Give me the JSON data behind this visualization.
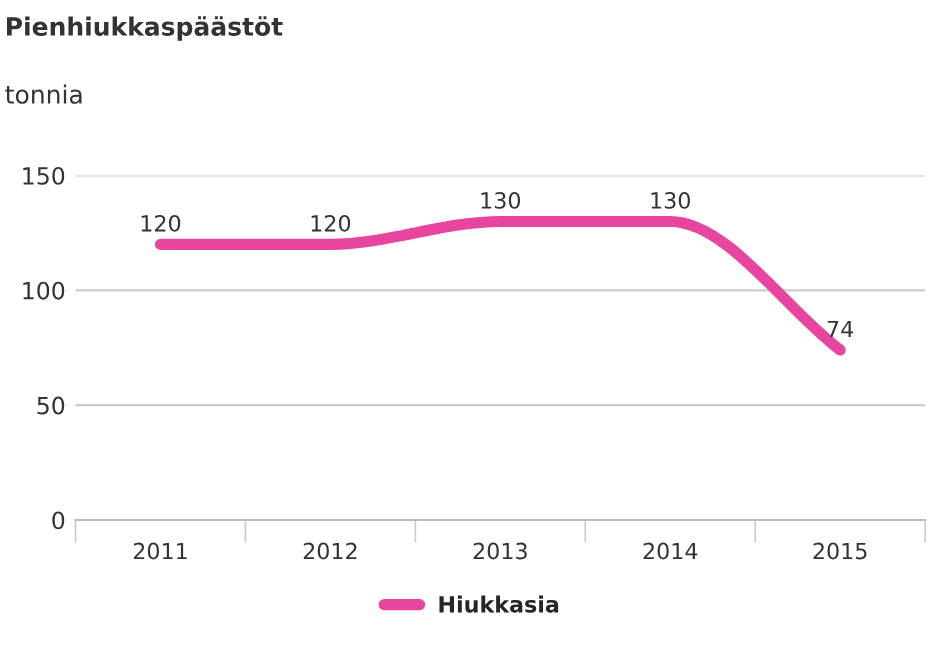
{
  "chart_data": {
    "type": "line",
    "title": "Pienhiukkaspäästöt",
    "ylabel": "tonnia",
    "categories": [
      "2011",
      "2012",
      "2013",
      "2014",
      "2015"
    ],
    "series": [
      {
        "name": "Hiukkasia",
        "color": "#e8459f",
        "values": [
          120,
          120,
          130,
          130,
          74
        ]
      }
    ],
    "ylim": [
      0,
      150
    ],
    "yticks": [
      0,
      50,
      100,
      150
    ],
    "grid": "y",
    "legend": "bottom",
    "data_labels": true,
    "marker": "none",
    "line_style": "solid"
  }
}
